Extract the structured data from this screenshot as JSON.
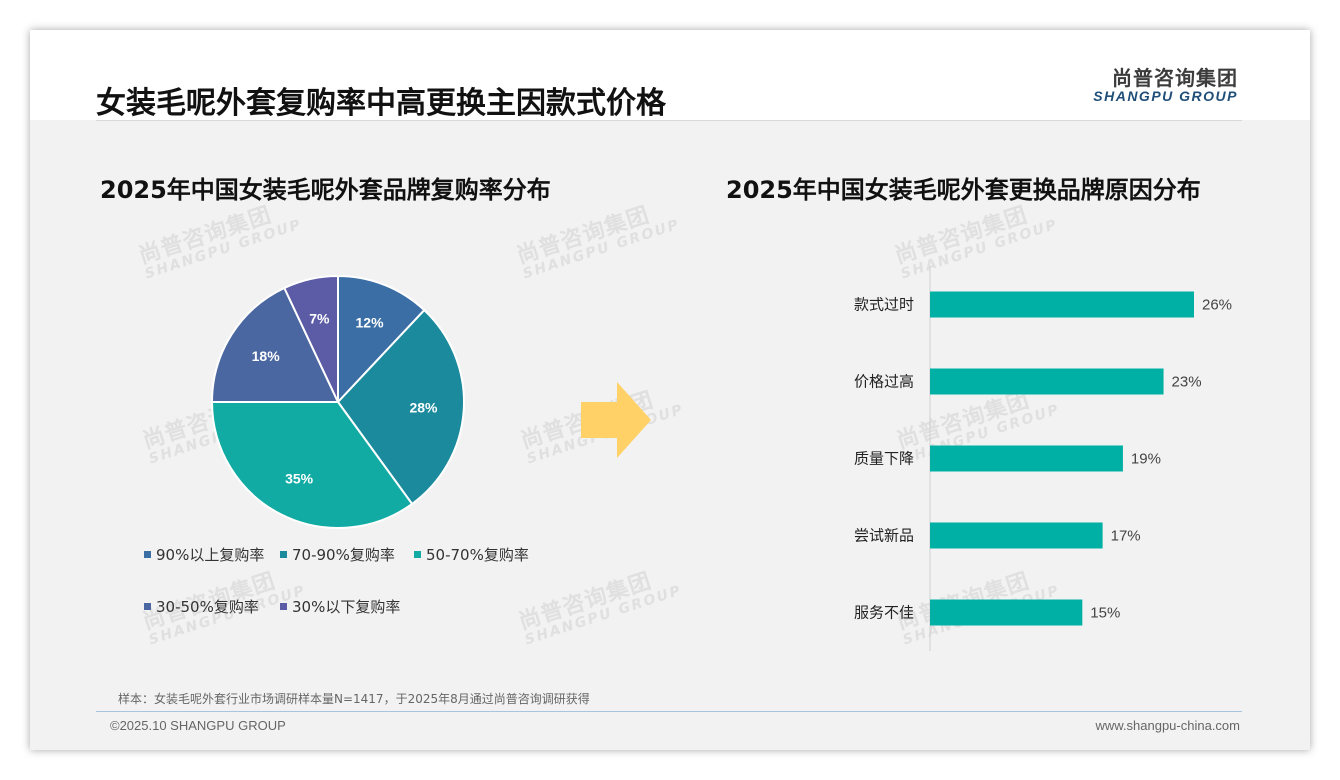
{
  "page": {
    "title": "女装毛呢外套复购率中高更换主因款式价格",
    "logo_cn": "尚普咨询集团",
    "logo_en": "SHANGPU GROUP",
    "watermark_cn": "尚普咨询集团",
    "watermark_en": "SHANGPU GROUP",
    "footnote": "样本：女装毛呢外套行业市场调研样本量N=1417，于2025年8月通过尚普咨询调研获得",
    "copyright": "©2025.10 SHANGPU GROUP",
    "website": "www.shangpu-china.com"
  },
  "chart_data": [
    {
      "type": "pie",
      "title": "2025年中国女装毛呢外套品牌复购率分布",
      "categories": [
        "90%以上复购率",
        "70-90%复购率",
        "50-70%复购率",
        "30-50%复购率",
        "30%以下复购率"
      ],
      "values": [
        12,
        28,
        35,
        18,
        7
      ],
      "data_labels": [
        "12%",
        "28%",
        "35%",
        "18%",
        "7%"
      ],
      "colors": [
        "#3a6ea5",
        "#1a8a9c",
        "#12aba4",
        "#4a67a1",
        "#5b5ba6"
      ],
      "legend_position": "bottom"
    },
    {
      "type": "bar",
      "orientation": "horizontal",
      "title": "2025年中国女装毛呢外套更换品牌原因分布",
      "categories": [
        "款式过时",
        "价格过高",
        "质量下降",
        "尝试新品",
        "服务不佳"
      ],
      "values": [
        26,
        23,
        19,
        17,
        15
      ],
      "data_labels": [
        "26%",
        "23%",
        "19%",
        "17%",
        "15%"
      ],
      "color": "#00b0a4",
      "xlim": [
        0,
        30
      ],
      "grid": false
    }
  ],
  "arrow_color": "#ffd166"
}
